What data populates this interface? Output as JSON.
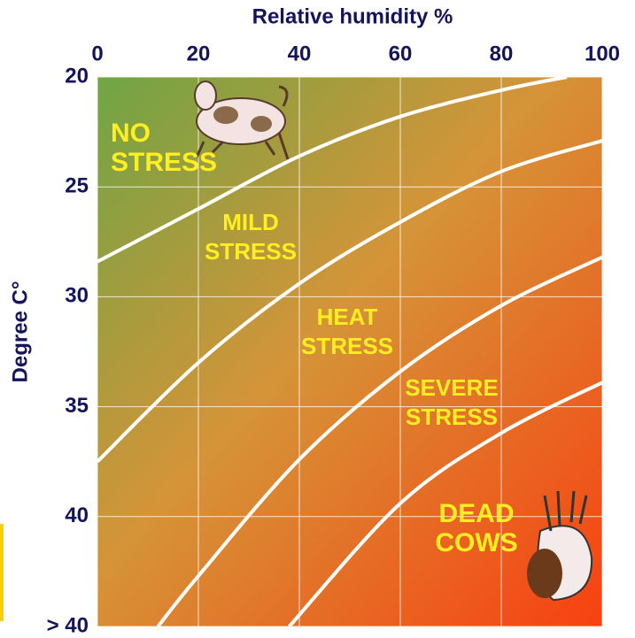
{
  "chart_data": {
    "type": "line",
    "x_label": "Relative humidity %",
    "y_label": "Degree C°",
    "xlim": [
      0,
      100
    ],
    "xticks": [
      0,
      20,
      40,
      60,
      80,
      100
    ],
    "ylim": [
      20,
      45
    ],
    "yticks": [
      20,
      25,
      30,
      35,
      40,
      {
        "value": 45,
        "label": "> 40"
      }
    ],
    "inverted_y": true,
    "grid": true,
    "line_color": "#ffffff",
    "series": [
      {
        "x": [
          0,
          20,
          40,
          60,
          80,
          93
        ],
        "values": [
          28.4,
          26.0,
          23.6,
          21.8,
          20.6,
          20
        ]
      },
      {
        "x": [
          0,
          20,
          40,
          60,
          80,
          100
        ],
        "values": [
          37.5,
          33.0,
          29.4,
          26.6,
          24.3,
          22.9
        ]
      },
      {
        "x": [
          12,
          20,
          40,
          60,
          80,
          100
        ],
        "values": [
          45,
          42.7,
          37.4,
          33.4,
          30.4,
          28.2
        ]
      },
      {
        "x": [
          38,
          60,
          80,
          100
        ],
        "values": [
          45,
          39.4,
          36.2,
          33.9
        ]
      }
    ],
    "zones": [
      [
        "NO",
        "STRESS"
      ],
      [
        "MILD",
        "STRESS"
      ],
      [
        "HEAT",
        "STRESS"
      ],
      [
        "SEVERE",
        "STRESS"
      ],
      [
        "DEAD",
        "COWS"
      ]
    ]
  }
}
